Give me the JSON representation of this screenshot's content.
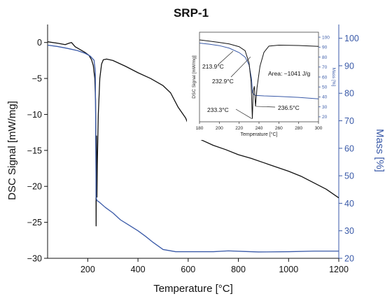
{
  "chart_data": {
    "type": "line",
    "title": "SRP-1",
    "xlabel": "Temperature [°C]",
    "ylabel_left": "DSC Signal [mW/mg]",
    "ylabel_right": "Mass [%]",
    "xlim": [
      40,
      1200
    ],
    "ylim_left": [
      -30,
      2.5
    ],
    "ylim_right": [
      20,
      105
    ],
    "x_ticks": [
      200,
      400,
      600,
      800,
      1000,
      1200
    ],
    "y_left_ticks": [
      0,
      -5,
      -10,
      -15,
      -20,
      -25,
      -30
    ],
    "y_right_ticks": [
      20,
      30,
      40,
      50,
      60,
      70,
      80,
      90,
      100
    ],
    "grid": false,
    "legend": "none",
    "colors": {
      "dsc": "#111111",
      "mass": "#3a5aa8"
    },
    "series": [
      {
        "axis": "left",
        "points": [
          [
            40,
            0.1
          ],
          [
            80,
            -0.1
          ],
          [
            110,
            -0.3
          ],
          [
            125,
            -0.1
          ],
          [
            135,
            0.0
          ],
          [
            150,
            -0.6
          ],
          [
            170,
            -1.0
          ],
          [
            190,
            -1.4
          ],
          [
            205,
            -1.8
          ],
          [
            215,
            -2.4
          ],
          [
            222,
            -3.2
          ],
          [
            228,
            -5.0
          ],
          [
            231,
            -8.0
          ],
          [
            232.5,
            -15.0
          ],
          [
            233.3,
            -25.5
          ],
          [
            234,
            -19.0
          ],
          [
            235,
            -13.0
          ],
          [
            236.5,
            -21.5
          ],
          [
            238,
            -17.0
          ],
          [
            242,
            -10.0
          ],
          [
            248,
            -5.0
          ],
          [
            255,
            -3.0
          ],
          [
            262,
            -2.4
          ],
          [
            275,
            -2.3
          ],
          [
            300,
            -2.5
          ],
          [
            350,
            -3.3
          ],
          [
            400,
            -4.2
          ],
          [
            450,
            -5.0
          ],
          [
            500,
            -6.0
          ],
          [
            530,
            -7.0
          ],
          [
            560,
            -9.0
          ],
          [
            590,
            -10.5
          ],
          [
            605,
            -11.8
          ],
          [
            620,
            -12.8
          ],
          [
            650,
            -13.5
          ],
          [
            700,
            -14.3
          ],
          [
            750,
            -14.9
          ],
          [
            800,
            -15.6
          ],
          [
            850,
            -16.1
          ],
          [
            900,
            -16.7
          ],
          [
            950,
            -17.3
          ],
          [
            1000,
            -17.9
          ],
          [
            1050,
            -18.6
          ],
          [
            1100,
            -19.5
          ],
          [
            1150,
            -20.4
          ],
          [
            1200,
            -21.6
          ]
        ]
      },
      {
        "axis": "right",
        "points": [
          [
            40,
            97.5
          ],
          [
            80,
            97.0
          ],
          [
            120,
            96.3
          ],
          [
            160,
            95.5
          ],
          [
            190,
            94.5
          ],
          [
            210,
            93.5
          ],
          [
            225,
            92.0
          ],
          [
            230,
            88.0
          ],
          [
            233.5,
            42.0
          ],
          [
            236.5,
            41.0
          ],
          [
            245,
            40.5
          ],
          [
            270,
            38.5
          ],
          [
            300,
            36.5
          ],
          [
            330,
            34.0
          ],
          [
            360,
            32.3
          ],
          [
            400,
            30.0
          ],
          [
            430,
            28.0
          ],
          [
            460,
            25.8
          ],
          [
            500,
            23.2
          ],
          [
            550,
            22.4
          ],
          [
            600,
            22.4
          ],
          [
            700,
            22.4
          ],
          [
            760,
            22.7
          ],
          [
            820,
            22.5
          ],
          [
            880,
            22.3
          ],
          [
            1000,
            22.4
          ],
          [
            1100,
            22.6
          ],
          [
            1200,
            22.6
          ]
        ]
      }
    ],
    "inset": {
      "xlabel": "Temperature [°C]",
      "ylabel_left": "DSC Signal [mW/mg]",
      "ylabel_right": "Mass [%]",
      "xlim": [
        180,
        300
      ],
      "x_ticks": [
        180,
        200,
        220,
        240,
        260,
        280,
        300
      ],
      "ylim_right": [
        15,
        105
      ],
      "y_right_ticks": [
        20,
        30,
        40,
        50,
        60,
        70,
        80,
        90,
        100
      ],
      "annotations": [
        "213.9°C",
        "232.9°C",
        "233.3°C",
        "236.5°C",
        "Area: −1041 J/g"
      ],
      "dsc_points": [
        [
          180,
          -0.5
        ],
        [
          190,
          -0.9
        ],
        [
          200,
          -1.3
        ],
        [
          210,
          -1.8
        ],
        [
          220,
          -2.7
        ],
        [
          226,
          -4.0
        ],
        [
          230,
          -8.0
        ],
        [
          232,
          -14.0
        ],
        [
          233.3,
          -26.0
        ],
        [
          234.2,
          -17.0
        ],
        [
          235.3,
          -15.5
        ],
        [
          236.5,
          -22.0
        ],
        [
          238,
          -16.0
        ],
        [
          241,
          -9.0
        ],
        [
          245,
          -4.5
        ],
        [
          250,
          -2.5
        ],
        [
          260,
          -2.2
        ],
        [
          280,
          -2.3
        ],
        [
          300,
          -2.6
        ]
      ],
      "dsc_ylim": [
        -27,
        2
      ],
      "mass_points": [
        [
          180,
          94.0
        ],
        [
          190,
          93.0
        ],
        [
          200,
          91.5
        ],
        [
          210,
          89.0
        ],
        [
          220,
          84.5
        ],
        [
          226,
          80.0
        ],
        [
          230,
          72.0
        ],
        [
          232.5,
          58.0
        ],
        [
          233.5,
          44.0
        ],
        [
          236,
          41.5
        ],
        [
          245,
          41.0
        ],
        [
          260,
          40.5
        ],
        [
          280,
          39.5
        ],
        [
          300,
          38.0
        ]
      ]
    }
  }
}
